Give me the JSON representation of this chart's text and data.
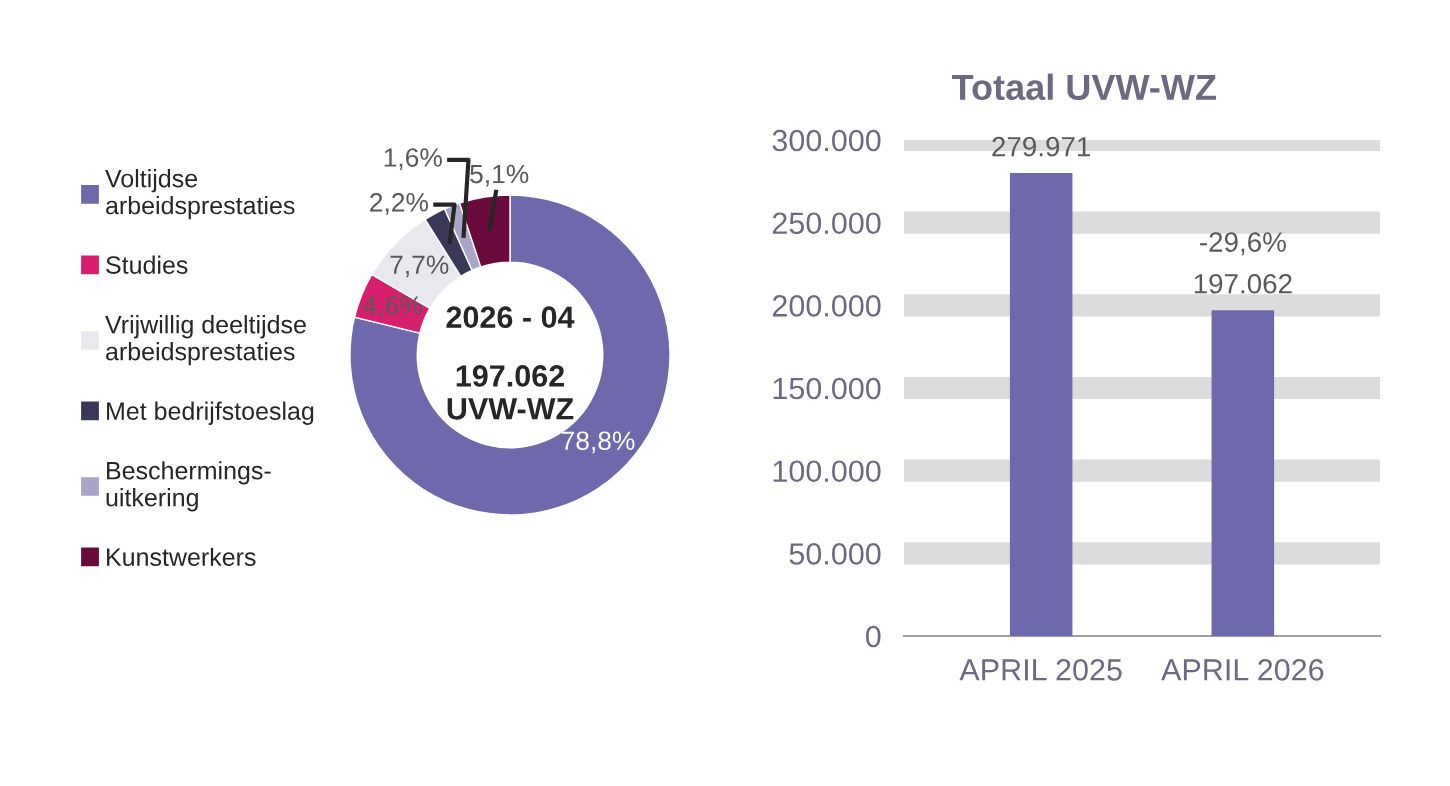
{
  "chart_data": [
    {
      "type": "donut",
      "categories": [
        "Voltijdse\narbeidsprestaties",
        "Studies",
        "Vrijwillig deeltijdse\narbeidsprestaties",
        "Met bedrijfstoeslag",
        "Beschermings-\nuitkering",
        "Kunstwerkers"
      ],
      "values": [
        78.8,
        4.6,
        7.7,
        2.2,
        1.6,
        5.1
      ],
      "colors": [
        "#6e68ac",
        "#d81f6e",
        "#e9e8ee",
        "#3a3858",
        "#a8a5c8",
        "#6b0a3c"
      ],
      "value_labels": [
        "78,8%",
        "4,6%",
        "7,7%",
        "2,2%",
        "1,6%",
        "5,1%"
      ],
      "legend": "left",
      "annotations": [
        "2026 - 04",
        "197.062\nUVW-WZ"
      ]
    },
    {
      "type": "bar",
      "title": "Totaal UVW-WZ",
      "categories": [
        "APRIL 2025",
        "APRIL 2026"
      ],
      "values": [
        279971,
        197062
      ],
      "color": "#6e68ac",
      "value_labels": [
        "279.971",
        "197.062"
      ],
      "ylim": [
        0,
        300000
      ],
      "yticks": [
        {
          "value": 0,
          "label": "0"
        },
        {
          "value": 50000,
          "label": "50.000"
        },
        {
          "value": 100000,
          "label": "100.000"
        },
        {
          "value": 150000,
          "label": "150.000"
        },
        {
          "value": 200000,
          "label": "200.000"
        },
        {
          "value": 250000,
          "label": "250.000"
        },
        {
          "value": 300000,
          "label": "300.000"
        }
      ],
      "grid": "y",
      "annotations": [
        {
          "text": "-29,6%",
          "x": "APRIL 2026",
          "y": 197062
        }
      ]
    }
  ]
}
